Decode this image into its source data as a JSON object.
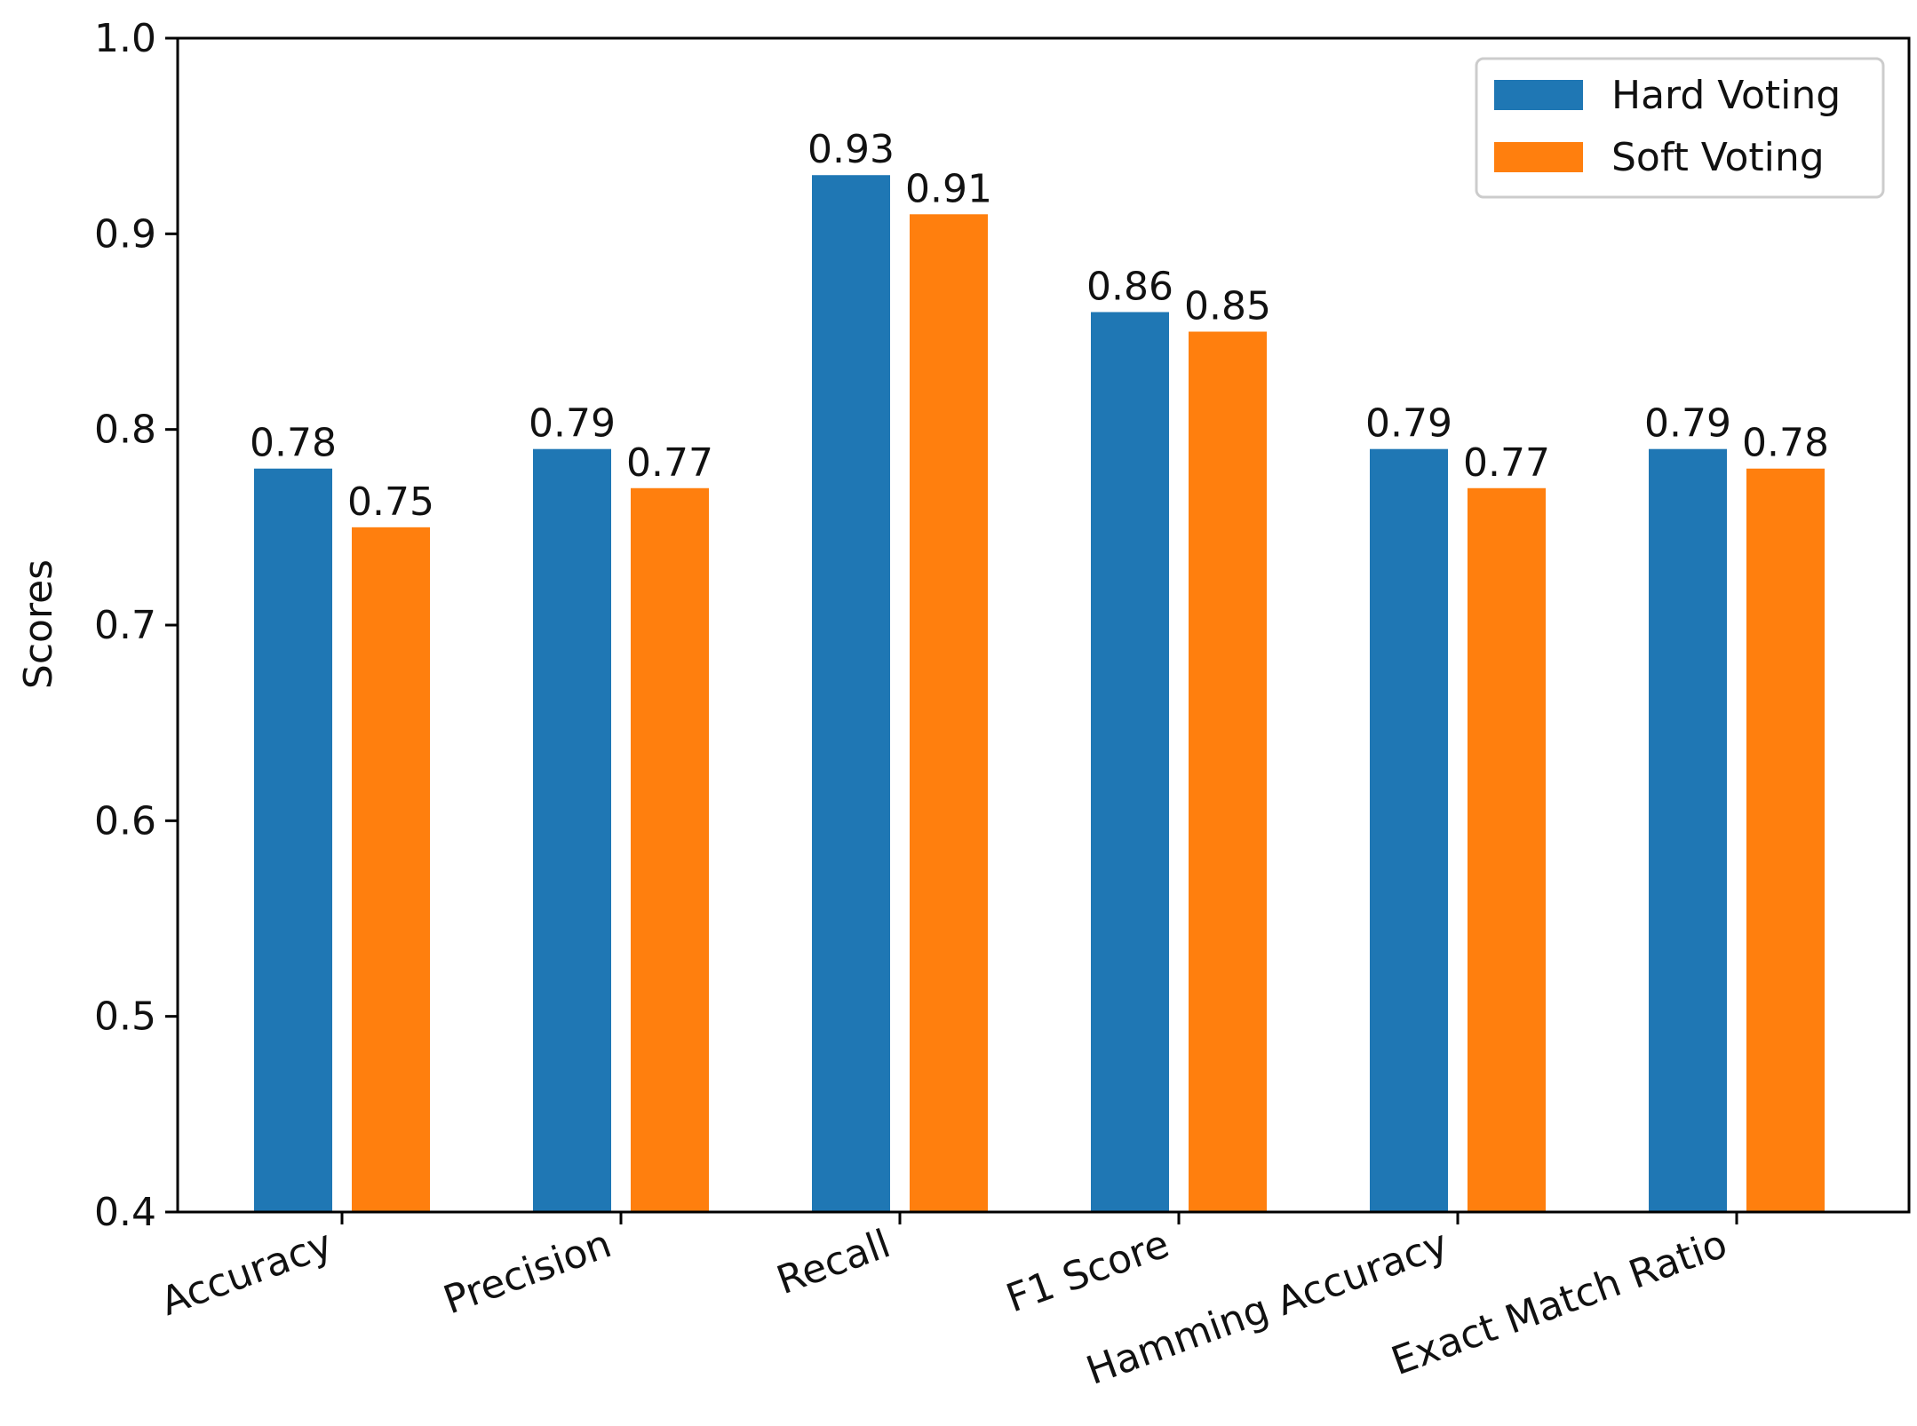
{
  "chart_data": {
    "type": "bar",
    "title": "",
    "xlabel": "",
    "ylabel": "Scores",
    "ylim": [
      0.4,
      1.0
    ],
    "yticks": [
      "0.4",
      "0.5",
      "0.6",
      "0.7",
      "0.8",
      "0.9",
      "1.0"
    ],
    "categories": [
      "Accuracy",
      "Precision",
      "Recall",
      "F1 Score",
      "Hamming Accuracy",
      "Exact Match Ratio"
    ],
    "series": [
      {
        "name": "Hard Voting",
        "color": "#1f77b4",
        "values": [
          0.78,
          0.79,
          0.93,
          0.86,
          0.79,
          0.79
        ],
        "labels": [
          "0.78",
          "0.79",
          "0.93",
          "0.86",
          "0.79",
          "0.79"
        ]
      },
      {
        "name": "Soft Voting",
        "color": "#ff7f0e",
        "values": [
          0.75,
          0.77,
          0.91,
          0.85,
          0.77,
          0.78
        ],
        "labels": [
          "0.75",
          "0.77",
          "0.91",
          "0.85",
          "0.77",
          "0.78"
        ]
      }
    ],
    "legend_position": "top-right",
    "grid": false
  }
}
